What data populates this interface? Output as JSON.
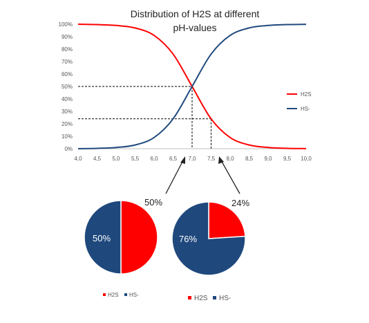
{
  "colors": {
    "h2s": "#ff0000",
    "hs": "#1f497d",
    "axis": "#bfbfbf",
    "text": "#333333",
    "guide": "#000000"
  },
  "chart_data": [
    {
      "type": "line",
      "title": "Distribution of H2S at different",
      "subtitle": "pH-values",
      "x": [
        4.0,
        4.5,
        5.0,
        5.5,
        6.0,
        6.5,
        7.0,
        7.5,
        8.0,
        8.5,
        9.0,
        9.5,
        10.0
      ],
      "x_tick_labels": [
        "4,0",
        "4,5",
        "5,0",
        "5,5",
        "6,0",
        "6,5",
        "7,0",
        "7,5",
        "8,0",
        "8,5",
        "9,0",
        "9,5",
        "10,0"
      ],
      "y_tick_labels": [
        "0%",
        "10%",
        "20%",
        "30%",
        "40%",
        "50%",
        "60%",
        "70%",
        "80%",
        "90%",
        "100%"
      ],
      "xlim": [
        4.0,
        10.0
      ],
      "ylim": [
        0,
        100
      ],
      "grid": false,
      "legend_position": "right",
      "series": [
        {
          "name": "H2S",
          "color": "#ff0000",
          "values": [
            100,
            99.7,
            99,
            97,
            91,
            76,
            50,
            24,
            9,
            3,
            1,
            0.3,
            0.1
          ]
        },
        {
          "name": "HS-",
          "color": "#1f497d",
          "values": [
            0,
            0.3,
            1,
            3,
            9,
            24,
            50,
            76,
            91,
            97,
            99,
            99.7,
            99.9
          ]
        }
      ],
      "reference_lines": [
        {
          "x": 7.0,
          "y": 50
        },
        {
          "x": 7.5,
          "y": 24
        }
      ]
    },
    {
      "type": "pie",
      "labels": [
        "H2S",
        "HS-"
      ],
      "values": [
        50,
        50
      ],
      "colors": [
        "#ff0000",
        "#1f497d"
      ],
      "slice_labels": [
        "50%",
        "50%"
      ],
      "legend": [
        "H2S",
        "HS-"
      ]
    },
    {
      "type": "pie",
      "labels": [
        "H2S",
        "HS-"
      ],
      "values": [
        24,
        76
      ],
      "colors": [
        "#ff0000",
        "#1f497d"
      ],
      "slice_labels": [
        "24%",
        "76%"
      ],
      "legend": [
        "H2S",
        "HS-"
      ]
    }
  ]
}
